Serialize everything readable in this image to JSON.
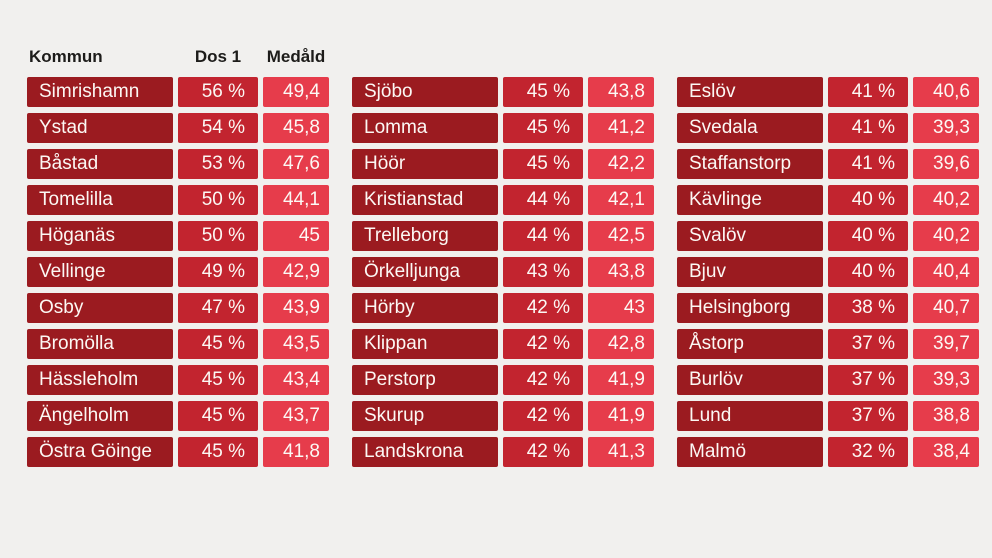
{
  "colors": {
    "bg": "#f1f0ee",
    "name_cell": "#9b1b20",
    "dos_cell": "#c2242f",
    "med_cell": "#e63c4b",
    "cell_text": "#fcf8f4",
    "header_text": "#1d1c1a"
  },
  "chart_data": {
    "type": "table",
    "title": "",
    "headers": {
      "kommun": "Kommun",
      "dos1": "Dos 1",
      "medald": "Medåld"
    },
    "layout": {
      "column_groups": 3,
      "rows_per_group": 11,
      "grid": "off",
      "value_format": "swedish decimal comma"
    },
    "columns": [
      {
        "rows": [
          {
            "kommun": "Simrishamn",
            "dos1": "56 %",
            "medald": "49,4"
          },
          {
            "kommun": "Ystad",
            "dos1": "54 %",
            "medald": "45,8"
          },
          {
            "kommun": "Båstad",
            "dos1": "53 %",
            "medald": "47,6"
          },
          {
            "kommun": "Tomelilla",
            "dos1": "50 %",
            "medald": "44,1"
          },
          {
            "kommun": "Höganäs",
            "dos1": "50 %",
            "medald": "45"
          },
          {
            "kommun": "Vellinge",
            "dos1": "49 %",
            "medald": "42,9"
          },
          {
            "kommun": "Osby",
            "dos1": "47 %",
            "medald": "43,9"
          },
          {
            "kommun": "Bromölla",
            "dos1": "45 %",
            "medald": "43,5"
          },
          {
            "kommun": "Hässleholm",
            "dos1": "45 %",
            "medald": "43,4"
          },
          {
            "kommun": "Ängelholm",
            "dos1": "45 %",
            "medald": "43,7"
          },
          {
            "kommun": "Östra Göinge",
            "dos1": "45 %",
            "medald": "41,8"
          }
        ]
      },
      {
        "rows": [
          {
            "kommun": "Sjöbo",
            "dos1": "45 %",
            "medald": "43,8"
          },
          {
            "kommun": "Lomma",
            "dos1": "45 %",
            "medald": "41,2"
          },
          {
            "kommun": "Höör",
            "dos1": "45 %",
            "medald": "42,2"
          },
          {
            "kommun": "Kristianstad",
            "dos1": "44 %",
            "medald": "42,1"
          },
          {
            "kommun": "Trelleborg",
            "dos1": "44 %",
            "medald": "42,5"
          },
          {
            "kommun": "Örkelljunga",
            "dos1": "43 %",
            "medald": "43,8"
          },
          {
            "kommun": "Hörby",
            "dos1": "42 %",
            "medald": "43"
          },
          {
            "kommun": "Klippan",
            "dos1": "42 %",
            "medald": "42,8"
          },
          {
            "kommun": "Perstorp",
            "dos1": "42 %",
            "medald": "41,9"
          },
          {
            "kommun": "Skurup",
            "dos1": "42 %",
            "medald": "41,9"
          },
          {
            "kommun": "Landskrona",
            "dos1": "42 %",
            "medald": "41,3"
          }
        ]
      },
      {
        "rows": [
          {
            "kommun": "Eslöv",
            "dos1": "41 %",
            "medald": "40,6"
          },
          {
            "kommun": "Svedala",
            "dos1": "41 %",
            "medald": "39,3"
          },
          {
            "kommun": "Staffanstorp",
            "dos1": "41 %",
            "medald": "39,6"
          },
          {
            "kommun": "Kävlinge",
            "dos1": "40 %",
            "medald": "40,2"
          },
          {
            "kommun": "Svalöv",
            "dos1": "40 %",
            "medald": "40,2"
          },
          {
            "kommun": "Bjuv",
            "dos1": "40 %",
            "medald": "40,4"
          },
          {
            "kommun": "Helsingborg",
            "dos1": "38 %",
            "medald": "40,7"
          },
          {
            "kommun": "Åstorp",
            "dos1": "37 %",
            "medald": "39,7"
          },
          {
            "kommun": "Burlöv",
            "dos1": "37 %",
            "medald": "39,3"
          },
          {
            "kommun": "Lund",
            "dos1": "37 %",
            "medald": "38,8"
          },
          {
            "kommun": "Malmö",
            "dos1": "32 %",
            "medald": "38,4"
          }
        ]
      }
    ]
  }
}
